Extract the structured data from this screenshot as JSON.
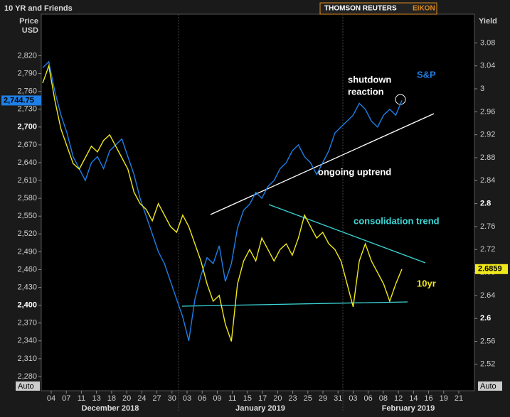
{
  "chart_data": {
    "type": "line",
    "title": "10 YR and Friends",
    "brand": [
      "THOMSON REUTERS",
      "EIKON"
    ],
    "y_axis_label": [
      "Price",
      "USD"
    ],
    "y2_axis_label": "Yield",
    "auto_labels": [
      "Auto",
      "Auto"
    ],
    "x_tick_labels": [
      "04",
      "07",
      "11",
      "13",
      "18",
      "20",
      "24",
      "27",
      "30",
      "03",
      "06",
      "09",
      "11",
      "15",
      "17",
      "20",
      "23",
      "25",
      "29",
      "31",
      "03",
      "06",
      "08",
      "12",
      "14",
      "16",
      "19",
      "21"
    ],
    "months": [
      "December 2018",
      "January 2019",
      "February 2019"
    ],
    "series": [
      {
        "name": "S&P",
        "color": "#1e7fe6",
        "value_labels": {
          "59": "2,744.75"
        },
        "values": [
          2800,
          2810,
          2760,
          2720,
          2690,
          2650,
          2630,
          2610,
          2640,
          2650,
          2630,
          2660,
          2670,
          2680,
          2650,
          2620,
          2580,
          2550,
          2520,
          2490,
          2470,
          2440,
          2410,
          2380,
          2340,
          2410,
          2450,
          2480,
          2470,
          2500,
          2440,
          2470,
          2530,
          2560,
          2570,
          2590,
          2580,
          2600,
          2610,
          2630,
          2640,
          2660,
          2670,
          2650,
          2640,
          2620,
          2640,
          2660,
          2690,
          2700,
          2710,
          2720,
          2740,
          2730,
          2710,
          2700,
          2720,
          2730,
          2720,
          2744.75
        ]
      },
      {
        "name": "10yr",
        "color": "#f0e81a",
        "axis": "y2",
        "values": [
          3.01,
          3.04,
          2.98,
          2.93,
          2.9,
          2.87,
          2.86,
          2.88,
          2.9,
          2.89,
          2.91,
          2.92,
          2.9,
          2.88,
          2.86,
          2.82,
          2.8,
          2.79,
          2.77,
          2.8,
          2.78,
          2.76,
          2.75,
          2.78,
          2.76,
          2.73,
          2.7,
          2.66,
          2.63,
          2.64,
          2.59,
          2.56,
          2.66,
          2.7,
          2.72,
          2.7,
          2.74,
          2.72,
          2.7,
          2.72,
          2.73,
          2.71,
          2.74,
          2.78,
          2.76,
          2.74,
          2.75,
          2.73,
          2.72,
          2.7,
          2.66,
          2.62,
          2.7,
          2.73,
          2.7,
          2.68,
          2.66,
          2.63,
          2.66,
          2.6859
        ]
      }
    ],
    "annotations": [
      "shutdown",
      "reaction",
      "ongoing uptrend",
      "consolidation trend"
    ],
    "ylim": [
      2256,
      2890
    ],
    "yticks": [
      {
        "value": 2820,
        "label": "2,820"
      },
      {
        "value": 2790,
        "label": "2,790"
      },
      {
        "value": 2760,
        "label": "2,760"
      },
      {
        "value": 2730,
        "label": "2,730"
      },
      {
        "value": 2700,
        "label": "2,700"
      },
      {
        "value": 2670,
        "label": "2,670"
      },
      {
        "value": 2640,
        "label": "2,640"
      },
      {
        "value": 2610,
        "label": "2,610"
      },
      {
        "value": 2580,
        "label": "2,580"
      },
      {
        "value": 2550,
        "label": "2,550"
      },
      {
        "value": 2520,
        "label": "2,520"
      },
      {
        "value": 2490,
        "label": "2,490"
      },
      {
        "value": 2460,
        "label": "2,460"
      },
      {
        "value": 2430,
        "label": "2,430"
      },
      {
        "value": 2400,
        "label": "2,400"
      },
      {
        "value": 2370,
        "label": "2,370"
      },
      {
        "value": 2340,
        "label": "2,340"
      },
      {
        "value": 2310,
        "label": "2,310"
      },
      {
        "value": 2280,
        "label": "2,280"
      }
    ],
    "y2lim": [
      2.474,
      3.13
    ],
    "y2ticks": [
      3.08,
      3.04,
      3,
      2.96,
      2.92,
      2.88,
      2.84,
      2.8,
      2.76,
      2.72,
      2.68,
      2.64,
      2.6,
      2.56,
      2.52
    ],
    "grid": false
  }
}
